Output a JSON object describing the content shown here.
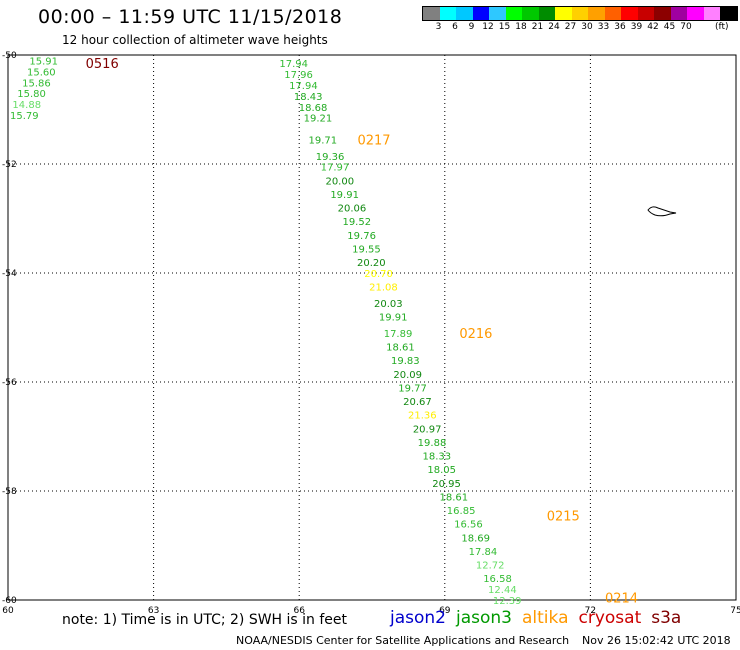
{
  "header": {
    "title": "00:00 – 11:59 UTC 11/15/2018",
    "subtitle": "12 hour collection of altimeter wave heights"
  },
  "colorbar": {
    "colors": [
      "#808080",
      "#00ffff",
      "#00c8ff",
      "#0000ff",
      "#2ec8ff",
      "#00ff00",
      "#00c800",
      "#008c00",
      "#ffff00",
      "#ffd000",
      "#ffa000",
      "#ff6000",
      "#ff0000",
      "#c80000",
      "#8c0000",
      "#a000a0",
      "#ff00ff",
      "#ff80ff",
      "#000000"
    ],
    "ticks": [
      "3",
      "6",
      "9",
      "12",
      "15",
      "18",
      "21",
      "24",
      "27",
      "30",
      "33",
      "36",
      "39",
      "42",
      "45",
      "70"
    ],
    "unit": "(ft)"
  },
  "map": {
    "lon_range": [
      60,
      75
    ],
    "lat_range": [
      -60,
      -50
    ],
    "lon_ticks": [
      "60",
      "63",
      "66",
      "69",
      "72",
      "75"
    ],
    "lat_ticks": [
      "-50",
      "-52",
      "-54",
      "-56",
      "-58",
      "-60"
    ]
  },
  "tracks": [
    {
      "pass": "0516",
      "color": "#800000",
      "lon": 61.6,
      "lat": -50.15
    },
    {
      "pass": "0217",
      "color": "#ff9900",
      "lon": 67.2,
      "lat": -51.55
    },
    {
      "pass": "0216",
      "color": "#ff9900",
      "lon": 69.3,
      "lat": -55.1
    },
    {
      "pass": "0215",
      "color": "#ff9900",
      "lon": 71.1,
      "lat": -58.45
    },
    {
      "pass": "0214",
      "color": "#ff9900",
      "lon": 72.3,
      "lat": -59.95
    }
  ],
  "observations": [
    {
      "v": "15.91",
      "lon": 60.4,
      "lat": -50.1,
      "c": "#33bb33"
    },
    {
      "v": "15.60",
      "lon": 60.35,
      "lat": -50.3,
      "c": "#33bb33"
    },
    {
      "v": "15.86",
      "lon": 60.25,
      "lat": -50.5,
      "c": "#33bb33"
    },
    {
      "v": "15.80",
      "lon": 60.15,
      "lat": -50.7,
      "c": "#33bb33"
    },
    {
      "v": "14.88",
      "lon": 60.05,
      "lat": -50.9,
      "c": "#66dd66"
    },
    {
      "v": "15.79",
      "lon": 60.0,
      "lat": -51.1,
      "c": "#33bb33"
    },
    {
      "v": "17.94",
      "lon": 65.55,
      "lat": -50.15,
      "c": "#33bb33"
    },
    {
      "v": "17.96",
      "lon": 65.65,
      "lat": -50.35,
      "c": "#33bb33"
    },
    {
      "v": "17.94",
      "lon": 65.75,
      "lat": -50.55,
      "c": "#33bb33"
    },
    {
      "v": "18.43",
      "lon": 65.85,
      "lat": -50.75,
      "c": "#22aa22"
    },
    {
      "v": "18.68",
      "lon": 65.95,
      "lat": -50.95,
      "c": "#22aa22"
    },
    {
      "v": "19.21",
      "lon": 66.05,
      "lat": -51.15,
      "c": "#22aa22"
    },
    {
      "v": "19.71",
      "lon": 66.15,
      "lat": -51.55,
      "c": "#22aa22"
    },
    {
      "v": "19.36",
      "lon": 66.3,
      "lat": -51.85,
      "c": "#22aa22"
    },
    {
      "v": "17.97",
      "lon": 66.4,
      "lat": -52.05,
      "c": "#33bb33"
    },
    {
      "v": "20.00",
      "lon": 66.5,
      "lat": -52.3,
      "c": "#118811"
    },
    {
      "v": "19.91",
      "lon": 66.6,
      "lat": -52.55,
      "c": "#22aa22"
    },
    {
      "v": "20.06",
      "lon": 66.75,
      "lat": -52.8,
      "c": "#118811"
    },
    {
      "v": "19.52",
      "lon": 66.85,
      "lat": -53.05,
      "c": "#22aa22"
    },
    {
      "v": "19.76",
      "lon": 66.95,
      "lat": -53.3,
      "c": "#22aa22"
    },
    {
      "v": "19.55",
      "lon": 67.05,
      "lat": -53.55,
      "c": "#22aa22"
    },
    {
      "v": "20.20",
      "lon": 67.15,
      "lat": -53.8,
      "c": "#118811"
    },
    {
      "v": "20.70",
      "lon": 67.3,
      "lat": -54.0,
      "c": "#ffff00"
    },
    {
      "v": "21.08",
      "lon": 67.4,
      "lat": -54.25,
      "c": "#ffee00"
    },
    {
      "v": "20.03",
      "lon": 67.5,
      "lat": -54.55,
      "c": "#118811"
    },
    {
      "v": "19.91",
      "lon": 67.6,
      "lat": -54.8,
      "c": "#22aa22"
    },
    {
      "v": "17.89",
      "lon": 67.7,
      "lat": -55.1,
      "c": "#33bb33"
    },
    {
      "v": "18.61",
      "lon": 67.75,
      "lat": -55.35,
      "c": "#22aa22"
    },
    {
      "v": "19.83",
      "lon": 67.85,
      "lat": -55.6,
      "c": "#22aa22"
    },
    {
      "v": "20.09",
      "lon": 67.9,
      "lat": -55.85,
      "c": "#118811"
    },
    {
      "v": "19.77",
      "lon": 68.0,
      "lat": -56.1,
      "c": "#22aa22"
    },
    {
      "v": "20.67",
      "lon": 68.1,
      "lat": -56.35,
      "c": "#118811"
    },
    {
      "v": "21.36",
      "lon": 68.2,
      "lat": -56.6,
      "c": "#ffee00"
    },
    {
      "v": "20.97",
      "lon": 68.3,
      "lat": -56.85,
      "c": "#118811"
    },
    {
      "v": "19.88",
      "lon": 68.4,
      "lat": -57.1,
      "c": "#22aa22"
    },
    {
      "v": "18.33",
      "lon": 68.5,
      "lat": -57.35,
      "c": "#22aa22"
    },
    {
      "v": "18.05",
      "lon": 68.6,
      "lat": -57.6,
      "c": "#22aa22"
    },
    {
      "v": "20.95",
      "lon": 68.7,
      "lat": -57.85,
      "c": "#118811"
    },
    {
      "v": "18.61",
      "lon": 68.85,
      "lat": -58.1,
      "c": "#22aa22"
    },
    {
      "v": "16.85",
      "lon": 69.0,
      "lat": -58.35,
      "c": "#33bb33"
    },
    {
      "v": "16.56",
      "lon": 69.15,
      "lat": -58.6,
      "c": "#33bb33"
    },
    {
      "v": "18.69",
      "lon": 69.3,
      "lat": -58.85,
      "c": "#22aa22"
    },
    {
      "v": "17.84",
      "lon": 69.45,
      "lat": -59.1,
      "c": "#33bb33"
    },
    {
      "v": "12.72",
      "lon": 69.6,
      "lat": -59.35,
      "c": "#66dd66"
    },
    {
      "v": "16.58",
      "lon": 69.75,
      "lat": -59.6,
      "c": "#33bb33"
    },
    {
      "v": "12.44",
      "lon": 69.85,
      "lat": -59.8,
      "c": "#66dd66"
    },
    {
      "v": "12.39",
      "lon": 69.95,
      "lat": -60.0,
      "c": "#66dd66"
    }
  ],
  "footer": {
    "note": "note: 1) Time is in UTC; 2) SWH is in feet",
    "satellites": [
      {
        "name": "jason2",
        "color": "#0000cc"
      },
      {
        "name": "jason3",
        "color": "#009900"
      },
      {
        "name": "altika",
        "color": "#ff9900"
      },
      {
        "name": "cryosat",
        "color": "#cc0000"
      },
      {
        "name": "s3a",
        "color": "#800000"
      }
    ],
    "credit": "NOAA/NESDIS Center for Satellite Applications and Research",
    "timestamp": "Nov 26 15:02:42 UTC 2018"
  }
}
